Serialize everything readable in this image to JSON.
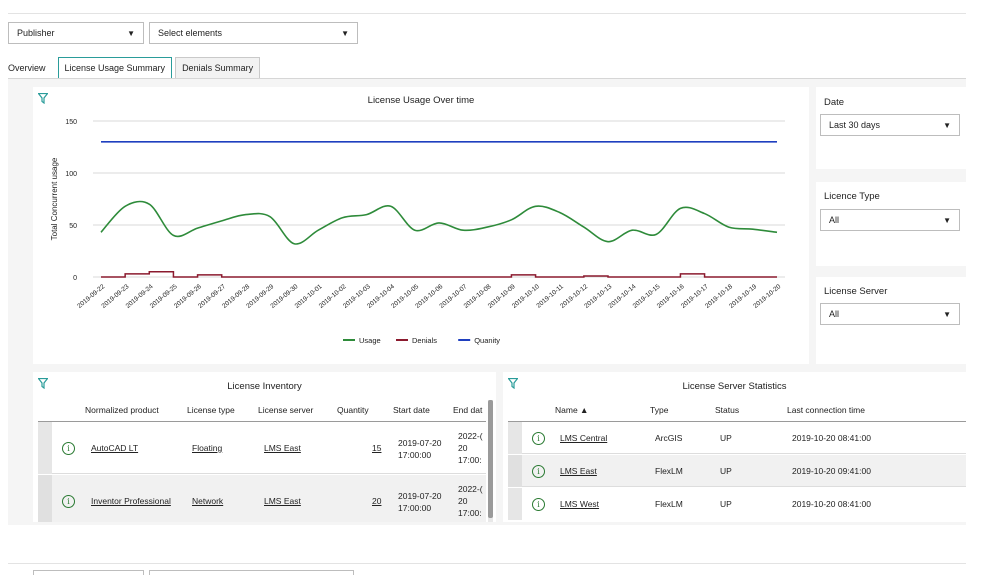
{
  "filters": {
    "publisher_label": "Publisher",
    "elements_label": "Select elements"
  },
  "tabs": [
    {
      "label": "Overview"
    },
    {
      "label": "License Usage Summary"
    },
    {
      "label": "Denials Summary"
    }
  ],
  "active_tab": "License Usage Summary",
  "accent_color": "#2a9c9a",
  "chart_data": {
    "type": "line",
    "title": "License Usage Over time",
    "ylabel": "Total Concurrent usage",
    "xlabel": "",
    "ylim": [
      0,
      150
    ],
    "yticks": [
      0,
      50,
      100,
      150
    ],
    "grid": true,
    "legend_placement": "bottom",
    "categories": [
      "2019-09-22",
      "2019-09-23",
      "2019-09-24",
      "2019-09-25",
      "2019-09-26",
      "2019-09-27",
      "2019-09-28",
      "2019-09-29",
      "2019-09-30",
      "2019-10-01",
      "2019-10-02",
      "2019-10-03",
      "2019-10-04",
      "2019-10-05",
      "2019-10-06",
      "2019-10-07",
      "2019-10-08",
      "2019-10-09",
      "2019-10-10",
      "2019-10-11",
      "2019-10-12",
      "2019-10-13",
      "2019-10-14",
      "2019-10-15",
      "2019-10-16",
      "2019-10-17",
      "2019-10-18",
      "2019-10-19",
      "2019-10-20"
    ],
    "series": [
      {
        "name": "Usage",
        "color": "#2e8b3a",
        "values": [
          43,
          68,
          70,
          40,
          47,
          54,
          60,
          58,
          32,
          45,
          57,
          60,
          68,
          45,
          52,
          45,
          48,
          55,
          68,
          62,
          48,
          34,
          45,
          41,
          66,
          61,
          48,
          46,
          43
        ]
      },
      {
        "name": "Denials",
        "color": "#8b1a2e",
        "values": [
          0,
          3,
          5,
          0,
          2,
          0,
          0,
          0,
          0,
          0,
          0,
          0,
          0,
          0,
          0,
          0,
          0,
          2,
          0,
          0,
          1,
          0,
          0,
          0,
          3,
          0,
          0,
          0,
          0
        ]
      },
      {
        "name": "Quanity",
        "color": "#1f3fbf",
        "values": [
          130,
          130,
          130,
          130,
          130,
          130,
          130,
          130,
          130,
          130,
          130,
          130,
          130,
          130,
          130,
          130,
          130,
          130,
          130,
          130,
          130,
          130,
          130,
          130,
          130,
          130,
          130,
          130,
          130
        ]
      }
    ]
  },
  "sidebar": {
    "date": {
      "label": "Date",
      "value": "Last 30 days"
    },
    "licence_type": {
      "label": "Licence Type",
      "value": "All"
    },
    "license_server": {
      "label": "License Server",
      "value": "All"
    }
  },
  "inventory": {
    "title": "License Inventory",
    "columns": [
      "Normalized product",
      "License type",
      "License server",
      "Quantity",
      "Start date",
      "End dat"
    ],
    "rows": [
      {
        "product": "AutoCAD LT",
        "type": "Floating",
        "server": "LMS East",
        "quantity": "15",
        "start": "2019-07-20 17:00:00",
        "end": "2022-( 20 17:00:"
      },
      {
        "product": "Inventor Professional",
        "type": "Network",
        "server": "LMS East",
        "quantity": "20",
        "start": "2019-07-20 17:00:00",
        "end": "2022-( 20 17:00:"
      }
    ]
  },
  "servers": {
    "title": "License Server Statistics",
    "columns": [
      "Name ▲",
      "Type",
      "Status",
      "Last connection time"
    ],
    "rows": [
      {
        "name": "LMS Central",
        "type": "ArcGIS",
        "status": "UP",
        "time": "2019-10-20 08:41:00"
      },
      {
        "name": "LMS East",
        "type": "FlexLM",
        "status": "UP",
        "time": "2019-10-20 09:41:00"
      },
      {
        "name": "LMS West",
        "type": "FlexLM",
        "status": "UP",
        "time": "2019-10-20 08:41:00"
      }
    ]
  }
}
